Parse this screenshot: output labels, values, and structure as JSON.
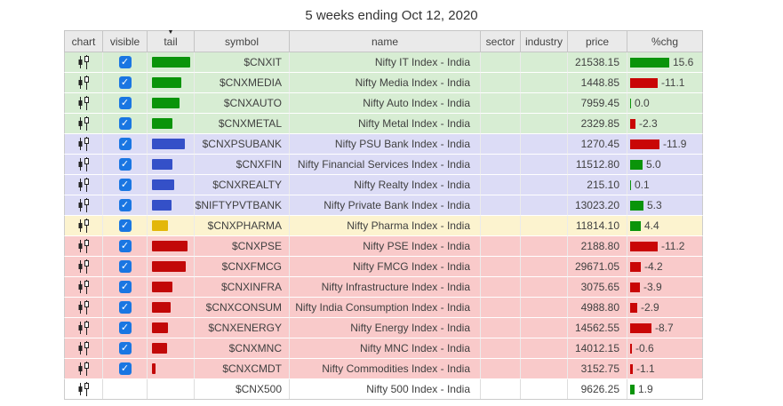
{
  "title": "5 weeks ending Oct 12, 2020",
  "table": {
    "columns": [
      "chart",
      "visible",
      "tail",
      "symbol",
      "name",
      "sector",
      "industry",
      "price",
      "%chg"
    ],
    "sort_column": "tail",
    "sort_caret": "▼",
    "checkbox_glyph": "✓",
    "colors": {
      "bar_green": "#0a940a",
      "bar_blue": "#3450c8",
      "bar_yellow": "#e3b70a",
      "bar_red": "#c20808",
      "pct_positive": "#0a940a",
      "pct_negative": "#c90606",
      "checkbox_blue": "#1a76e2",
      "row_green": "#d7edd3",
      "row_blue": "#dcdcf6",
      "row_yellow": "#fcf3cf",
      "row_red": "#f9caca",
      "row_white": "#ffffff"
    },
    "rows": [
      {
        "symbol": "$CNXIT",
        "name": "Nifty IT Index - India",
        "sector": "",
        "industry": "",
        "price": "21538.15",
        "pct": 15.6,
        "tail": 43,
        "tail_color": "green",
        "group": "green",
        "visible": true
      },
      {
        "symbol": "$CNXMEDIA",
        "name": "Nifty Media Index - India",
        "sector": "",
        "industry": "",
        "price": "1448.85",
        "pct": -11.1,
        "tail": 33,
        "tail_color": "green",
        "group": "green",
        "visible": true
      },
      {
        "symbol": "$CNXAUTO",
        "name": "Nifty Auto Index - India",
        "sector": "",
        "industry": "",
        "price": "7959.45",
        "pct": 0.0,
        "tail": 31,
        "tail_color": "green",
        "group": "green",
        "visible": true
      },
      {
        "symbol": "$CNXMETAL",
        "name": "Nifty Metal Index - India",
        "sector": "",
        "industry": "",
        "price": "2329.85",
        "pct": -2.3,
        "tail": 23,
        "tail_color": "green",
        "group": "green",
        "visible": true
      },
      {
        "symbol": "$CNXPSUBANK",
        "name": "Nifty PSU Bank Index - India",
        "sector": "",
        "industry": "",
        "price": "1270.45",
        "pct": -11.9,
        "tail": 37,
        "tail_color": "blue",
        "group": "blue",
        "visible": true
      },
      {
        "symbol": "$CNXFIN",
        "name": "Nifty Financial Services Index - India",
        "sector": "",
        "industry": "",
        "price": "11512.80",
        "pct": 5.0,
        "tail": 23,
        "tail_color": "blue",
        "group": "blue",
        "visible": true
      },
      {
        "symbol": "$CNXREALTY",
        "name": "Nifty Realty Index - India",
        "sector": "",
        "industry": "",
        "price": "215.10",
        "pct": 0.1,
        "tail": 25,
        "tail_color": "blue",
        "group": "blue",
        "visible": true
      },
      {
        "symbol": "$NIFTYPVTBANK",
        "name": "Nifty Private Bank Index - India",
        "sector": "",
        "industry": "",
        "price": "13023.20",
        "pct": 5.3,
        "tail": 22,
        "tail_color": "blue",
        "group": "blue",
        "visible": true
      },
      {
        "symbol": "$CNXPHARMA",
        "name": "Nifty Pharma Index - India",
        "sector": "",
        "industry": "",
        "price": "11814.10",
        "pct": 4.4,
        "tail": 18,
        "tail_color": "yellow",
        "group": "yellow",
        "visible": true
      },
      {
        "symbol": "$CNXPSE",
        "name": "Nifty PSE Index - India",
        "sector": "",
        "industry": "",
        "price": "2188.80",
        "pct": -11.2,
        "tail": 40,
        "tail_color": "red",
        "group": "red",
        "visible": true
      },
      {
        "symbol": "$CNXFMCG",
        "name": "Nifty FMCG Index - India",
        "sector": "",
        "industry": "",
        "price": "29671.05",
        "pct": -4.2,
        "tail": 38,
        "tail_color": "red",
        "group": "red",
        "visible": true
      },
      {
        "symbol": "$CNXINFRA",
        "name": "Nifty Infrastructure Index - India",
        "sector": "",
        "industry": "",
        "price": "3075.65",
        "pct": -3.9,
        "tail": 23,
        "tail_color": "red",
        "group": "red",
        "visible": true
      },
      {
        "symbol": "$CNXCONSUM",
        "name": "Nifty India Consumption Index - India",
        "sector": "",
        "industry": "",
        "price": "4988.80",
        "pct": -2.9,
        "tail": 21,
        "tail_color": "red",
        "group": "red",
        "visible": true
      },
      {
        "symbol": "$CNXENERGY",
        "name": "Nifty Energy Index - India",
        "sector": "",
        "industry": "",
        "price": "14562.55",
        "pct": -8.7,
        "tail": 18,
        "tail_color": "red",
        "group": "red",
        "visible": true
      },
      {
        "symbol": "$CNXMNC",
        "name": "Nifty MNC Index - India",
        "sector": "",
        "industry": "",
        "price": "14012.15",
        "pct": -0.6,
        "tail": 17,
        "tail_color": "red",
        "group": "red",
        "visible": true
      },
      {
        "symbol": "$CNXCMDT",
        "name": "Nifty Commodities Index - India",
        "sector": "",
        "industry": "",
        "price": "3152.75",
        "pct": -1.1,
        "tail": 4,
        "tail_color": "red",
        "group": "red",
        "visible": true
      },
      {
        "symbol": "$CNX500",
        "name": "Nifty 500 Index - India",
        "sector": "",
        "industry": "",
        "price": "9626.25",
        "pct": 1.9,
        "tail": 0,
        "tail_color": "none",
        "group": "white",
        "visible": false
      }
    ]
  }
}
